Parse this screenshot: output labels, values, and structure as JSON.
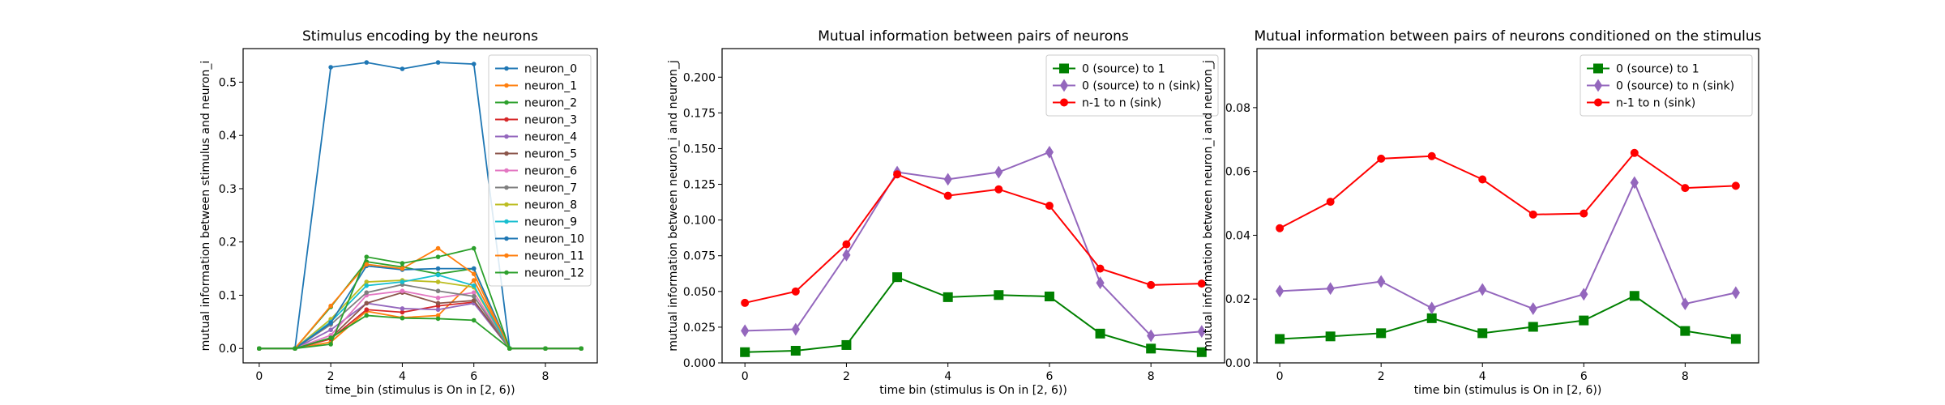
{
  "chart_data": [
    {
      "type": "line",
      "title": "Stimulus encoding by the neurons",
      "xlabel": "time_bin (stimulus is On in [2, 6))",
      "ylabel": "mutual information between stimulus and neuron_i",
      "xlim": [
        -0.45,
        9.45
      ],
      "ylim": [
        -0.027,
        0.563
      ],
      "xticks": [
        0,
        2,
        4,
        6,
        8
      ],
      "yticks": [
        0.0,
        0.1,
        0.2,
        0.3,
        0.4,
        0.5
      ],
      "ytick_labels": [
        "0.0",
        "0.1",
        "0.2",
        "0.3",
        "0.4",
        "0.5"
      ],
      "legend_position": "top-right",
      "x": [
        0,
        1,
        2,
        3,
        4,
        5,
        6,
        7,
        8,
        9
      ],
      "series": [
        {
          "name": "neuron_0",
          "color": "#1f77b4",
          "marker": "circle",
          "values": [
            0,
            0,
            0.528,
            0.537,
            0.525,
            0.537,
            0.534,
            0,
            0,
            0
          ]
        },
        {
          "name": "neuron_1",
          "color": "#ff7f0e",
          "marker": "circle",
          "values": [
            0,
            0,
            0.012,
            0.07,
            0.058,
            0.062,
            0.128,
            0,
            0,
            0
          ]
        },
        {
          "name": "neuron_2",
          "color": "#2ca02c",
          "marker": "circle",
          "values": [
            0,
            0,
            0.078,
            0.163,
            0.153,
            0.14,
            0.15,
            0,
            0,
            0
          ]
        },
        {
          "name": "neuron_3",
          "color": "#d62728",
          "marker": "circle",
          "values": [
            0,
            0,
            0.018,
            0.073,
            0.068,
            0.08,
            0.087,
            0,
            0,
            0
          ]
        },
        {
          "name": "neuron_4",
          "color": "#9467bd",
          "marker": "circle",
          "values": [
            0,
            0,
            0.035,
            0.085,
            0.075,
            0.073,
            0.085,
            0,
            0,
            0
          ]
        },
        {
          "name": "neuron_5",
          "color": "#8c564b",
          "marker": "circle",
          "values": [
            0,
            0,
            0.02,
            0.085,
            0.105,
            0.085,
            0.09,
            0,
            0,
            0
          ]
        },
        {
          "name": "neuron_6",
          "color": "#e377c2",
          "marker": "circle",
          "values": [
            0,
            0,
            0.025,
            0.1,
            0.108,
            0.095,
            0.105,
            0,
            0,
            0
          ]
        },
        {
          "name": "neuron_7",
          "color": "#7f7f7f",
          "marker": "circle",
          "values": [
            0,
            0,
            0.045,
            0.105,
            0.12,
            0.108,
            0.098,
            0,
            0,
            0
          ]
        },
        {
          "name": "neuron_8",
          "color": "#bcbd22",
          "marker": "circle",
          "values": [
            0,
            0,
            0.055,
            0.125,
            0.128,
            0.125,
            0.115,
            0,
            0,
            0
          ]
        },
        {
          "name": "neuron_9",
          "color": "#17becf",
          "marker": "circle",
          "values": [
            0,
            0,
            0.05,
            0.118,
            0.125,
            0.138,
            0.118,
            0,
            0,
            0
          ]
        },
        {
          "name": "neuron_10",
          "color": "#1f77b4",
          "marker": "circle",
          "values": [
            0,
            0,
            0.048,
            0.155,
            0.148,
            0.15,
            0.15,
            0,
            0,
            0
          ]
        },
        {
          "name": "neuron_11",
          "color": "#ff7f0e",
          "marker": "circle",
          "values": [
            0,
            0,
            0.08,
            0.158,
            0.15,
            0.188,
            0.14,
            0,
            0,
            0
          ]
        },
        {
          "name": "neuron_12",
          "color": "#2ca02c",
          "marker": "circle",
          "values": [
            0,
            0,
            0.008,
            0.172,
            0.16,
            0.172,
            0.188,
            0,
            0,
            0
          ]
        },
        {
          "name": "",
          "color": "#2ca02c",
          "marker": "circle",
          "values": [
            0,
            0,
            0.02,
            0.062,
            0.057,
            0.056,
            0.053,
            0,
            0,
            0
          ]
        }
      ]
    },
    {
      "type": "line",
      "title": "Mutual information between pairs of neurons",
      "xlabel": "time bin (stimulus is On in [2, 6))",
      "ylabel": "mutual information between neuron_i and neuron_j",
      "xlim": [
        -0.45,
        9.45
      ],
      "ylim": [
        0.0,
        0.22
      ],
      "xticks": [
        0,
        2,
        4,
        6,
        8
      ],
      "yticks": [
        0.0,
        0.025,
        0.05,
        0.075,
        0.1,
        0.125,
        0.15,
        0.175,
        0.2
      ],
      "ytick_labels": [
        "0.000",
        "0.025",
        "0.050",
        "0.075",
        "0.100",
        "0.125",
        "0.150",
        "0.175",
        "0.200"
      ],
      "legend_position": "top-right",
      "x": [
        0,
        1,
        2,
        3,
        4,
        5,
        6,
        7,
        8,
        9
      ],
      "series": [
        {
          "name": "0 (source) to 1",
          "color": "#008000",
          "marker": "square",
          "values": [
            0.0075,
            0.0085,
            0.0125,
            0.06,
            0.046,
            0.0475,
            0.0465,
            0.0205,
            0.01,
            0.0075
          ]
        },
        {
          "name": "0 (source) to n (sink)",
          "color": "#9467bd",
          "marker": "diamond",
          "values": [
            0.0225,
            0.0235,
            0.0755,
            0.1335,
            0.1285,
            0.1335,
            0.1475,
            0.056,
            0.019,
            0.022
          ]
        },
        {
          "name": "n-1 to n (sink)",
          "color": "#ff0000",
          "marker": "circle",
          "values": [
            0.042,
            0.05,
            0.083,
            0.132,
            0.117,
            0.1215,
            0.11,
            0.066,
            0.0545,
            0.0555
          ]
        }
      ]
    },
    {
      "type": "line",
      "title": "Mutual information between pairs of neurons conditioned on the stimulus",
      "xlabel": "time bin (stimulus is On in [2, 6))",
      "ylabel": "mutual information between neuron_i and neuron_j",
      "xlim": [
        -0.45,
        9.45
      ],
      "ylim": [
        0.0,
        0.0985
      ],
      "xticks": [
        0,
        2,
        4,
        6,
        8
      ],
      "yticks": [
        0.0,
        0.02,
        0.04,
        0.06,
        0.08
      ],
      "ytick_labels": [
        "0.00",
        "0.02",
        "0.04",
        "0.06",
        "0.08"
      ],
      "legend_position": "top-right",
      "x": [
        0,
        1,
        2,
        3,
        4,
        5,
        6,
        7,
        8,
        9
      ],
      "series": [
        {
          "name": "0 (source) to 1",
          "color": "#008000",
          "marker": "square",
          "values": [
            0.0075,
            0.0083,
            0.0093,
            0.014,
            0.0093,
            0.0113,
            0.0133,
            0.021,
            0.01,
            0.0075
          ]
        },
        {
          "name": "0 (source) to n (sink)",
          "color": "#9467bd",
          "marker": "diamond",
          "values": [
            0.0225,
            0.0233,
            0.0255,
            0.0172,
            0.023,
            0.017,
            0.0215,
            0.0565,
            0.0185,
            0.022
          ]
        },
        {
          "name": "n-1 to n (sink)",
          "color": "#ff0000",
          "marker": "circle",
          "values": [
            0.0422,
            0.0505,
            0.064,
            0.0648,
            0.0575,
            0.0465,
            0.0468,
            0.0658,
            0.0548,
            0.0555
          ]
        }
      ]
    }
  ]
}
